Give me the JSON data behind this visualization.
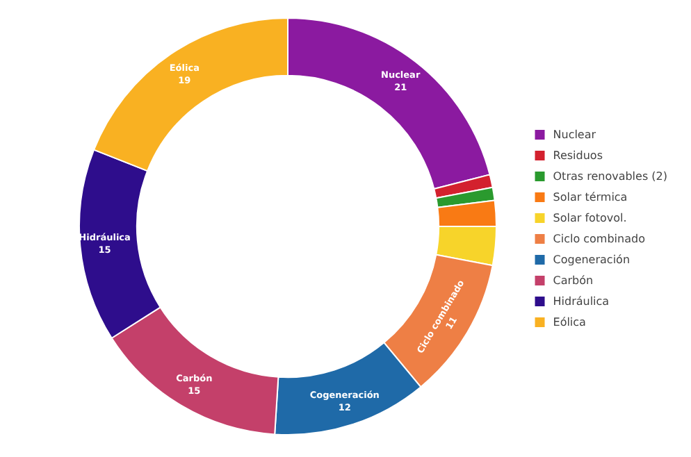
{
  "chart_data": {
    "type": "donut",
    "categories": [
      "Nuclear",
      "Residuos",
      "Otras renovables (2)",
      "Solar térmica",
      "Solar fotovol.",
      "Ciclo combinado",
      "Cogeneración",
      "Carbón",
      "Hidráulica",
      "Eólica"
    ],
    "values": [
      21,
      1,
      1,
      2,
      3,
      11,
      12,
      15,
      15,
      19
    ],
    "value_labels": [
      "21",
      null,
      null,
      null,
      null,
      "11",
      "12",
      "15",
      "15",
      "19"
    ],
    "colors": [
      "#8b1aa0",
      "#d3212e",
      "#2a9a2e",
      "#f97a14",
      "#f7d42a",
      "#ee7f45",
      "#1f6aa8",
      "#c4406a",
      "#2e0d8c",
      "#f9b122"
    ],
    "legend": "right"
  }
}
